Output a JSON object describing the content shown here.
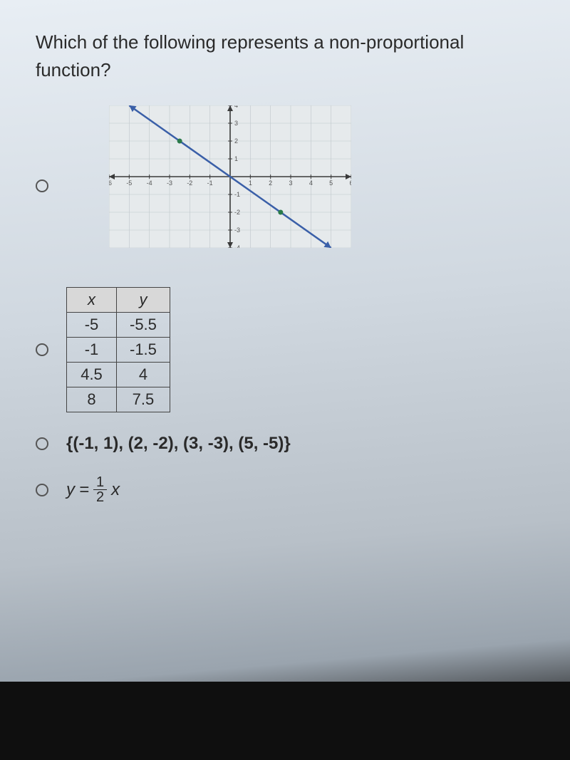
{
  "question_text": "Which of the following represents a non-proportional function?",
  "chart": {
    "type": "line",
    "xlim": [
      -6,
      6
    ],
    "ylim": [
      -4,
      4
    ],
    "xtick_step": 1,
    "ytick_step": 1,
    "grid_color": "#bfc7cc",
    "axis_color": "#3a3a3a",
    "background_color": "#e6eaec",
    "line_color": "#3a5fa8",
    "line_width": 2.5,
    "arrow_color": "#3a5fa8",
    "points": [
      [
        -5,
        4
      ],
      [
        5,
        -4
      ]
    ],
    "marker_points": [
      [
        -2.5,
        2
      ],
      [
        2.5,
        -2
      ]
    ],
    "marker_color": "#2a7a4a",
    "axis_label_color": "#555555",
    "axis_label_fontsize": 9
  },
  "table": {
    "headers": [
      "x",
      "y"
    ],
    "rows": [
      [
        "-5",
        "-5.5"
      ],
      [
        "-1",
        "-1.5"
      ],
      [
        "4.5",
        "4"
      ],
      [
        "8",
        "7.5"
      ]
    ]
  },
  "set_text": "{(-1, 1), (2, -2), (3, -3), (5, -5)}",
  "equation": {
    "lhs": "y",
    "eq": "=",
    "numerator": "1",
    "denominator": "2",
    "rhs": "x"
  }
}
